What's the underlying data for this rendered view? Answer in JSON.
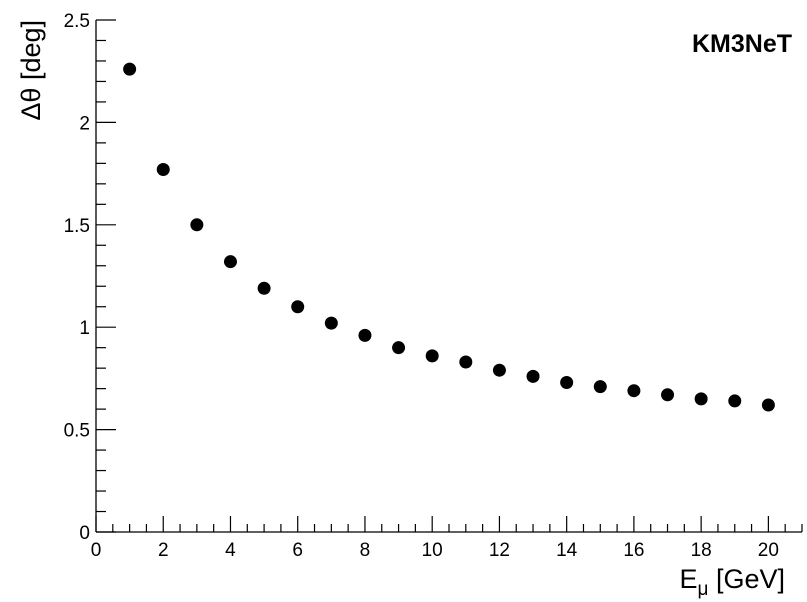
{
  "chart_data": {
    "type": "scatter",
    "annotation": "KM3NeT",
    "xlabel": {
      "main": "E",
      "sub": "μ",
      "rest": " [GeV]"
    },
    "ylabel": "Δθ [deg]",
    "xlim": [
      0,
      21
    ],
    "ylim": [
      0,
      2.5
    ],
    "x_ticks": [
      0,
      2,
      4,
      6,
      8,
      10,
      12,
      14,
      16,
      18,
      20
    ],
    "y_ticks": [
      0,
      0.5,
      1,
      1.5,
      2,
      2.5
    ],
    "x_tick_labels": [
      "0",
      "2",
      "4",
      "6",
      "8",
      "10",
      "12",
      "14",
      "16",
      "18",
      "20"
    ],
    "y_tick_labels": [
      "0",
      "0.5",
      "1",
      "1.5",
      "2",
      "2.5"
    ],
    "grid": false,
    "marker_color": "#000000",
    "series": [
      {
        "x": [
          1,
          2,
          3,
          4,
          5,
          6,
          7,
          8,
          9,
          10,
          11,
          12,
          13,
          14,
          15,
          16,
          17,
          18,
          19,
          20
        ],
        "y": [
          2.26,
          1.77,
          1.5,
          1.32,
          1.19,
          1.1,
          1.02,
          0.96,
          0.9,
          0.86,
          0.83,
          0.79,
          0.76,
          0.73,
          0.71,
          0.69,
          0.67,
          0.65,
          0.64,
          0.62
        ]
      }
    ]
  }
}
